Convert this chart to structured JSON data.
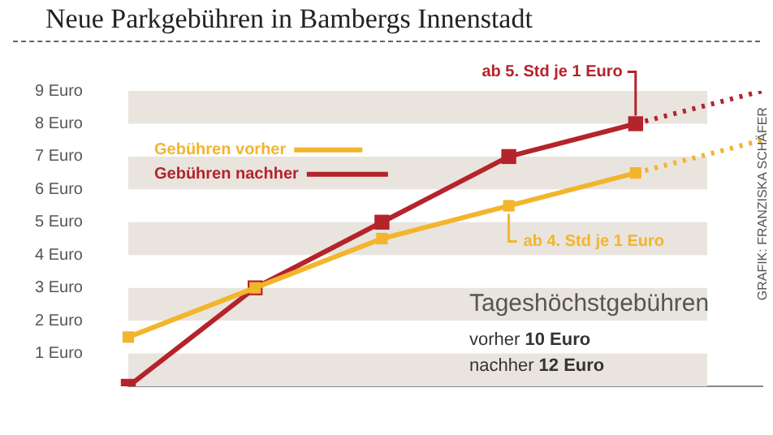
{
  "chart_data": {
    "type": "line",
    "title": "Neue Parkgebühren in Bambergs Innenstadt",
    "categories": [
      null,
      null,
      null,
      null,
      null,
      null
    ],
    "series": [
      {
        "name": "Gebühren vorher",
        "color": "#f2b52b",
        "values": [
          1.5,
          3,
          4.5,
          5.5,
          6.5,
          null
        ],
        "marker": "square",
        "line_style": "solid"
      },
      {
        "name": "Gebühren nachher",
        "color": "#b5232b",
        "values": [
          0,
          3,
          5,
          7,
          8,
          null
        ],
        "marker": "square",
        "line_style": "solid"
      },
      {
        "color": "#f2b52b",
        "values": [
          null,
          null,
          null,
          null,
          6.5,
          7.5
        ],
        "marker": "none",
        "line_style": "dotted"
      },
      {
        "color": "#b5232b",
        "values": [
          null,
          null,
          null,
          null,
          8,
          9
        ],
        "marker": "none",
        "line_style": "dotted"
      }
    ],
    "ylim": [
      0,
      9
    ],
    "yticks": [
      {
        "value": 1,
        "label": "1 Euro"
      },
      {
        "value": 2,
        "label": "2 Euro"
      },
      {
        "value": 3,
        "label": "3 Euro"
      },
      {
        "value": 4,
        "label": "4 Euro"
      },
      {
        "value": 5,
        "label": "5 Euro"
      },
      {
        "value": 6,
        "label": "6 Euro"
      },
      {
        "value": 7,
        "label": "7 Euro"
      },
      {
        "value": 8,
        "label": "8 Euro"
      },
      {
        "value": 9,
        "label": "9 Euro"
      }
    ],
    "bands": [
      {
        "axis": "y",
        "from": 0,
        "to": 1,
        "color": "#e9e4de"
      },
      {
        "axis": "y",
        "from": 2,
        "to": 3,
        "color": "#e9e4de"
      },
      {
        "axis": "y",
        "from": 4,
        "to": 5,
        "color": "#e9e4de"
      },
      {
        "axis": "y",
        "from": 6,
        "to": 7,
        "color": "#e9e4de"
      },
      {
        "axis": "y",
        "from": 8,
        "to": 9,
        "color": "#e9e4de"
      }
    ],
    "annotations": [
      "ab 5. Std je 1 Euro",
      "ab 4. Std je 1 Euro",
      "Tageshöchstgebühren",
      "vorher 10 Euro",
      "nachher 12 Euro",
      "GRAFIK: FRANZISKA SCHÄFER"
    ],
    "grid": false,
    "legend": "top left",
    "tick_labels": "y"
  }
}
